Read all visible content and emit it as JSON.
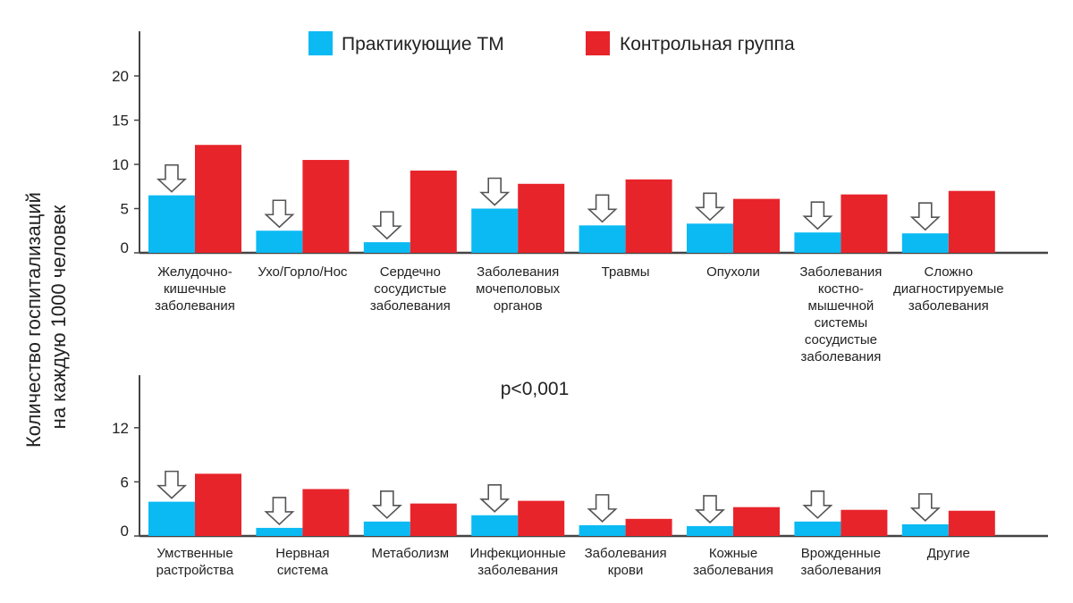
{
  "chart_data": [
    {
      "type": "bar",
      "panel": "top",
      "categories": [
        "Желудочно-\nкишечные\nзаболевания",
        "Ухо/Горло/Нос",
        "Сердечно\nсосудистые\nзаболевания",
        "Заболевания\nмочеполовых\nорганов",
        "Травмы",
        "Опухоли",
        "Заболевания\nкостно-\nмышечной\nсистемы\nсосудистые\nзаболевания",
        "Сложно\nдиагностируемые\nзаболевания"
      ],
      "series": [
        {
          "name": "Практикующие ТМ",
          "values": [
            6.5,
            2.5,
            1.2,
            5.0,
            3.1,
            3.3,
            2.3,
            2.2
          ]
        },
        {
          "name": "Контрольная группа",
          "values": [
            12.2,
            10.5,
            9.3,
            7.8,
            8.3,
            6.1,
            6.6,
            7.0
          ]
        }
      ],
      "yticks": [
        0,
        5,
        10,
        15,
        20
      ],
      "ylim": [
        0,
        24.5
      ],
      "arrows_over_first_series": true
    },
    {
      "type": "bar",
      "panel": "bottom",
      "categories": [
        "Умственные\nрастройства",
        "Нервная\nсистема",
        "Метаболизм",
        "Инфекционные\nзаболевания",
        "Заболевания\nкрови",
        "Кожные\nзаболевания",
        "Врожденные\nзаболевания",
        "Другие"
      ],
      "series": [
        {
          "name": "Практикующие ТМ",
          "values": [
            3.8,
            0.9,
            1.6,
            2.3,
            1.2,
            1.1,
            1.6,
            1.3
          ]
        },
        {
          "name": "Контрольная группа",
          "values": [
            6.9,
            5.2,
            3.6,
            3.9,
            1.9,
            3.2,
            2.9,
            2.8
          ]
        }
      ],
      "yticks": [
        0,
        6,
        12
      ],
      "ylim": [
        0,
        17.5
      ],
      "arrows_over_first_series": true
    }
  ],
  "legend": [
    {
      "label": "Практикующие ТМ",
      "color": "#0BBAF3"
    },
    {
      "label": "Контрольная группа",
      "color": "#E8242B"
    }
  ],
  "ylabel_lines": [
    "Количество госпитализаций",
    "на каждую 1000 человек"
  ],
  "annotation": "p<0,001"
}
